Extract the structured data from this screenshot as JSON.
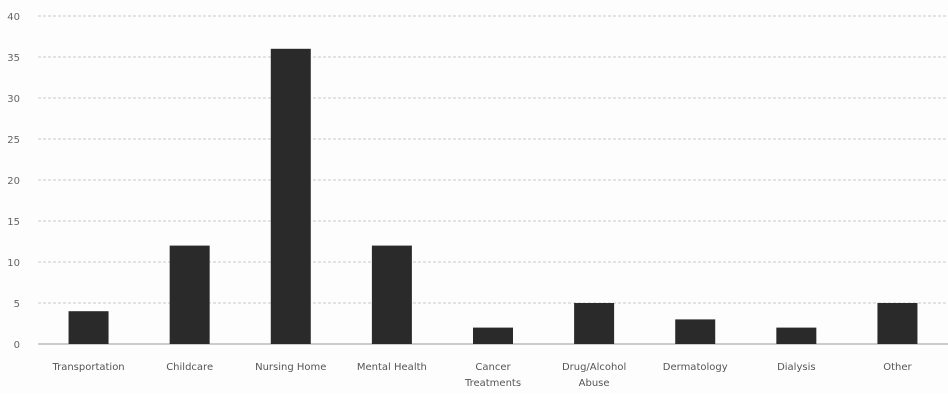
{
  "chart_data": {
    "type": "bar",
    "title": "",
    "xlabel": "",
    "ylabel": "",
    "ylim": [
      0,
      40
    ],
    "yticks": [
      "0",
      "5",
      "10",
      "15",
      "20",
      "25",
      "30",
      "35",
      "40"
    ],
    "categories": [
      [
        "Transportation"
      ],
      [
        "Childcare"
      ],
      [
        "Nursing Home"
      ],
      [
        "Mental Health"
      ],
      [
        "Cancer",
        "Treatments"
      ],
      [
        "Drug/Alcohol",
        "Abuse"
      ],
      [
        "Dermatology"
      ],
      [
        "Dialysis"
      ],
      [
        "Other"
      ]
    ],
    "values": [
      4,
      12,
      36,
      12,
      2,
      5,
      3,
      2,
      5
    ],
    "grid": true,
    "legend": "none",
    "colors": {
      "bar": "#2a2a2a",
      "grid": "#c9c9c9",
      "text": "#555555"
    }
  }
}
